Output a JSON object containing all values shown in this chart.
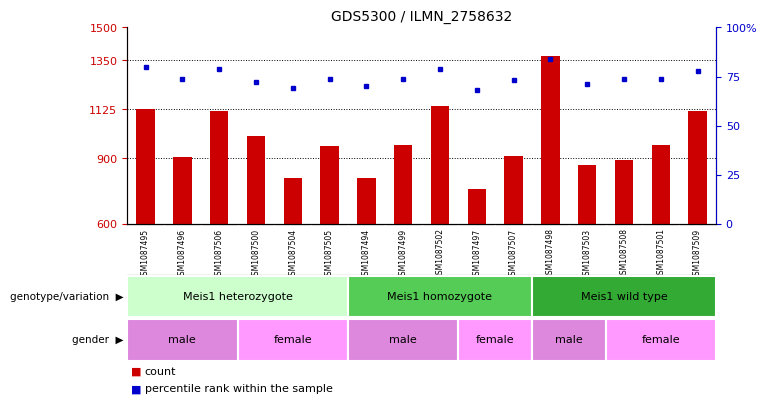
{
  "title": "GDS5300 / ILMN_2758632",
  "samples": [
    "GSM1087495",
    "GSM1087496",
    "GSM1087506",
    "GSM1087500",
    "GSM1087504",
    "GSM1087505",
    "GSM1087494",
    "GSM1087499",
    "GSM1087502",
    "GSM1087497",
    "GSM1087507",
    "GSM1087498",
    "GSM1087503",
    "GSM1087508",
    "GSM1087501",
    "GSM1087509"
  ],
  "counts_actual": [
    1127,
    905,
    1118,
    1003,
    810,
    955,
    810,
    960,
    1138,
    760,
    910,
    1370,
    868,
    893,
    960,
    1115
  ],
  "percentiles": [
    80,
    74,
    79,
    72,
    69,
    74,
    70,
    74,
    79,
    68,
    73,
    84,
    71,
    74,
    74,
    78
  ],
  "ylim_left": [
    600,
    1500
  ],
  "ylim_right": [
    0,
    100
  ],
  "yticks_left": [
    600,
    900,
    1125,
    1350,
    1500
  ],
  "yticks_right": [
    0,
    25,
    50,
    75,
    100
  ],
  "ytick_right_labels": [
    "0",
    "25",
    "50",
    "75",
    "100%"
  ],
  "bar_color": "#cc0000",
  "dot_color": "#0000cc",
  "hgrid_vals": [
    900,
    1125,
    1350
  ],
  "genotype_groups": [
    {
      "label": "Meis1 heterozygote",
      "start": 0,
      "end": 6,
      "color": "#ccffcc"
    },
    {
      "label": "Meis1 homozygote",
      "start": 6,
      "end": 11,
      "color": "#55cc55"
    },
    {
      "label": "Meis1 wild type",
      "start": 11,
      "end": 16,
      "color": "#33aa33"
    }
  ],
  "gender_groups": [
    {
      "label": "male",
      "start": 0,
      "end": 3,
      "color": "#dd88dd"
    },
    {
      "label": "female",
      "start": 3,
      "end": 6,
      "color": "#ff99ff"
    },
    {
      "label": "male",
      "start": 6,
      "end": 9,
      "color": "#dd88dd"
    },
    {
      "label": "female",
      "start": 9,
      "end": 11,
      "color": "#ff99ff"
    },
    {
      "label": "male",
      "start": 11,
      "end": 13,
      "color": "#dd88dd"
    },
    {
      "label": "female",
      "start": 13,
      "end": 16,
      "color": "#ff99ff"
    }
  ],
  "legend_count_label": "count",
  "legend_pct_label": "percentile rank within the sample",
  "genotype_label": "genotype/variation",
  "gender_label": "gender",
  "sample_bg_color": "#bbbbbb",
  "bar_width": 0.5
}
